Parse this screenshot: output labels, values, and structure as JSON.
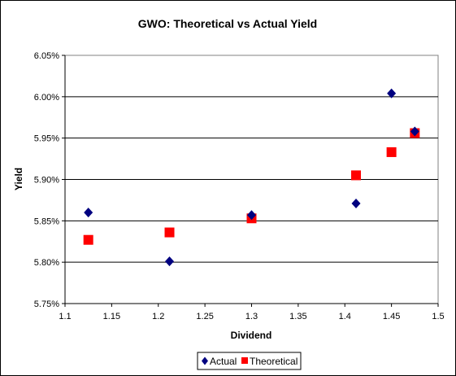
{
  "chart_data": {
    "type": "scatter",
    "title": "GWO: Theoretical vs Actual Yield",
    "xlabel": "Dividend",
    "ylabel": "Yield",
    "xlim": [
      1.1,
      1.5
    ],
    "ylim": [
      5.75,
      6.05
    ],
    "x_ticks": [
      "1.1",
      "1.15",
      "1.2",
      "1.25",
      "1.3",
      "1.35",
      "1.4",
      "1.45",
      "1.5"
    ],
    "y_ticks": [
      "5.75%",
      "5.80%",
      "5.85%",
      "5.90%",
      "5.95%",
      "6.00%",
      "6.05%"
    ],
    "grid": "horizontal",
    "legend_position": "bottom-right",
    "series": [
      {
        "name": "Actual",
        "marker": "diamond",
        "color": "#000080",
        "points": [
          {
            "x": 1.125,
            "y": 5.86
          },
          {
            "x": 1.212,
            "y": 5.801
          },
          {
            "x": 1.3,
            "y": 5.857
          },
          {
            "x": 1.412,
            "y": 5.871
          },
          {
            "x": 1.45,
            "y": 6.004
          },
          {
            "x": 1.475,
            "y": 5.958
          }
        ]
      },
      {
        "name": "Theoretical",
        "marker": "square",
        "color": "#ff0000",
        "points": [
          {
            "x": 1.125,
            "y": 5.827
          },
          {
            "x": 1.212,
            "y": 5.836
          },
          {
            "x": 1.3,
            "y": 5.853
          },
          {
            "x": 1.412,
            "y": 5.905
          },
          {
            "x": 1.45,
            "y": 5.933
          },
          {
            "x": 1.475,
            "y": 5.956
          }
        ]
      }
    ]
  }
}
